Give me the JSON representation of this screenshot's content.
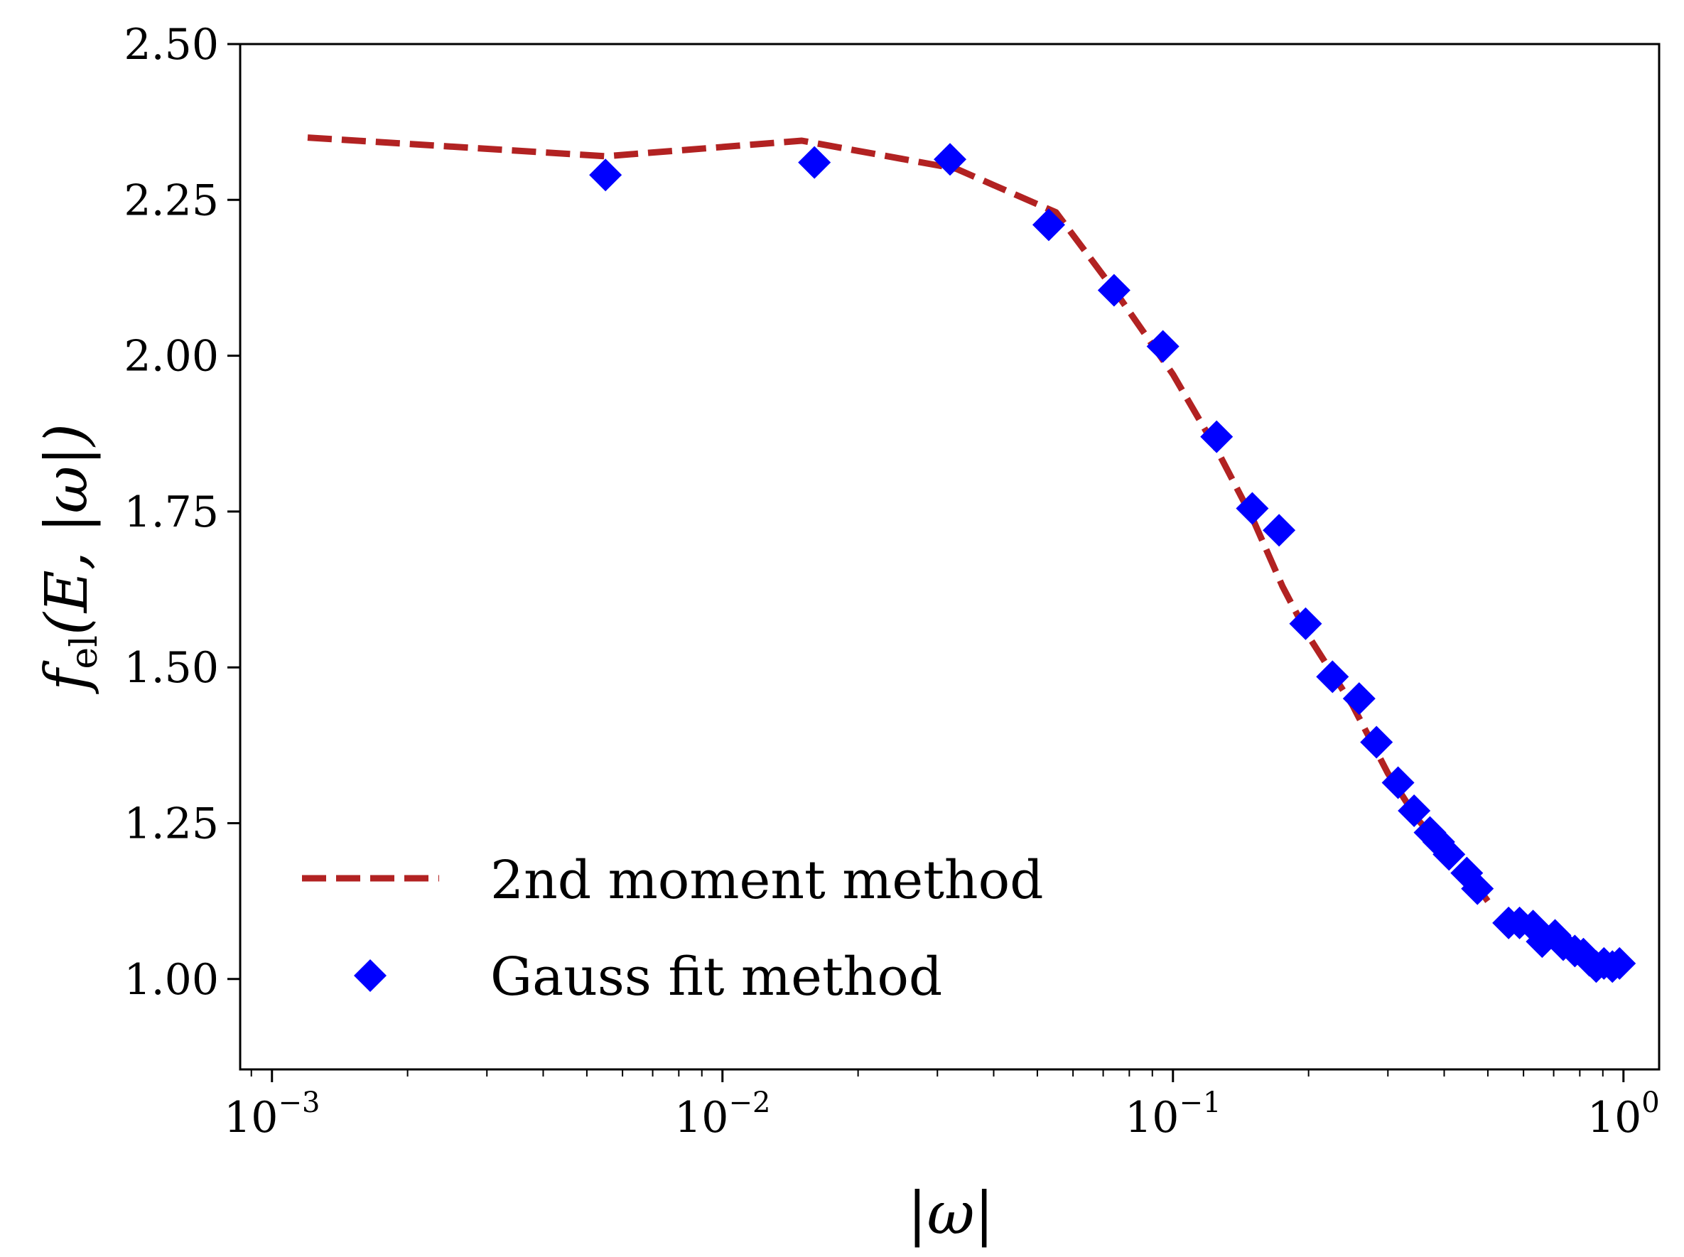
{
  "chart_data": {
    "type": "line+scatter",
    "x_scale": "log",
    "xlim": [
      0.00085,
      1.2
    ],
    "ylim": [
      0.855,
      2.5
    ],
    "xlabel": "|ω|",
    "ylabel_parts": {
      "f": "f",
      "sub": "el",
      "args": "(E, |ω|)"
    },
    "x_ticks": [
      {
        "value": 0.001,
        "base": "10",
        "exp": "−3"
      },
      {
        "value": 0.01,
        "base": "10",
        "exp": "−2"
      },
      {
        "value": 0.1,
        "base": "10",
        "exp": "−1"
      },
      {
        "value": 1,
        "base": "10",
        "exp": "0"
      }
    ],
    "y_ticks": [
      {
        "value": 1.0,
        "label": "1.00"
      },
      {
        "value": 1.25,
        "label": "1.25"
      },
      {
        "value": 1.5,
        "label": "1.50"
      },
      {
        "value": 1.75,
        "label": "1.75"
      },
      {
        "value": 2.0,
        "label": "2.00"
      },
      {
        "value": 2.25,
        "label": "2.25"
      },
      {
        "value": 2.5,
        "label": "2.50"
      }
    ],
    "series": [
      {
        "name": "2nd moment method",
        "style": "dashed-line",
        "color": "#b22222",
        "x": [
          0.0012,
          0.0055,
          0.015,
          0.033,
          0.055,
          0.075,
          0.1,
          0.125,
          0.15,
          0.175,
          0.2,
          0.25,
          0.3,
          0.35,
          0.4,
          0.45,
          0.5
        ],
        "y": [
          2.35,
          2.32,
          2.345,
          2.3,
          2.23,
          2.1,
          1.97,
          1.85,
          1.74,
          1.63,
          1.55,
          1.44,
          1.33,
          1.255,
          1.21,
          1.17,
          1.125
        ]
      },
      {
        "name": "Gauss fit method",
        "style": "diamond-markers",
        "color": "#0000ff",
        "x": [
          0.0055,
          0.016,
          0.032,
          0.053,
          0.074,
          0.095,
          0.125,
          0.15,
          0.172,
          0.197,
          0.226,
          0.259,
          0.283,
          0.316,
          0.343,
          0.372,
          0.389,
          0.41,
          0.449,
          0.474,
          0.556,
          0.588,
          0.63,
          0.66,
          0.705,
          0.735,
          0.78,
          0.815,
          0.84,
          0.87,
          0.905,
          0.945,
          0.98
        ],
        "y": [
          2.29,
          2.31,
          2.315,
          2.21,
          2.105,
          2.015,
          1.87,
          1.755,
          1.72,
          1.57,
          1.485,
          1.45,
          1.38,
          1.315,
          1.27,
          1.235,
          1.22,
          1.2,
          1.17,
          1.145,
          1.09,
          1.09,
          1.085,
          1.06,
          1.07,
          1.055,
          1.045,
          1.04,
          1.03,
          1.02,
          1.025,
          1.02,
          1.025
        ]
      }
    ],
    "legend": {
      "position": "lower-left"
    }
  }
}
